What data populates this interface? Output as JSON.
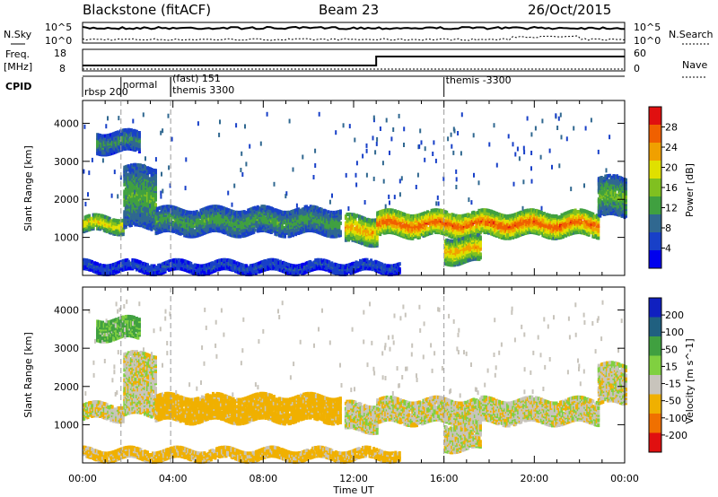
{
  "header": {
    "title": "Blackstone (fitACF)",
    "beam": "Beam 23",
    "date": "26/Oct/2015"
  },
  "noise_panel": {
    "left_label": "N.Sky",
    "right_label": "N.Search",
    "left_ticks": [
      "10^5",
      "10^0"
    ],
    "right_ticks": [
      "10^5",
      "10^0"
    ]
  },
  "freq_panel": {
    "left_label_1": "Freq.",
    "left_label_2": "[MHz]",
    "right_label": "Nave",
    "left_ticks": [
      "18",
      "8"
    ],
    "right_ticks": [
      "60",
      "0"
    ],
    "freq_step_time_hours": 13.0
  },
  "cpid_panel": {
    "label": "CPID",
    "segments": [
      {
        "start_hour": 0.0,
        "text": "rbsp 200"
      },
      {
        "start_hour": 1.7,
        "text": "normal"
      },
      {
        "start_hour": 3.9,
        "text": "(fast) 151"
      },
      {
        "start_hour": 3.9,
        "text": "themis 3300"
      },
      {
        "start_hour": 16.0,
        "text": "themis -3300"
      }
    ]
  },
  "x_axis": {
    "label": "Time UT",
    "ticks": [
      "00:00",
      "04:00",
      "08:00",
      "12:00",
      "16:00",
      "20:00",
      "00:00"
    ],
    "range_hours": [
      0,
      24
    ]
  },
  "power_panel": {
    "ylabel": "Slant Range [km]",
    "yticks": [
      "1000",
      "2000",
      "3000",
      "4000"
    ],
    "colorbar_label": "Power [dB]",
    "colorbar_ticks": [
      "28",
      "24",
      "20",
      "16",
      "12",
      "8",
      "4"
    ],
    "colors": [
      "#0000ee",
      "#1840c8",
      "#306890",
      "#40a040",
      "#80c020",
      "#e0e000",
      "#f0a000",
      "#f06000",
      "#e01010"
    ]
  },
  "velocity_panel": {
    "ylabel": "Slant Range [km]",
    "yticks": [
      "1000",
      "2000",
      "3000",
      "4000"
    ],
    "colorbar_label": "Velocity [m s^-1]",
    "colorbar_ticks": [
      "200",
      "100",
      "50",
      "15",
      "-15",
      "-50",
      "-100",
      "-200"
    ],
    "colors": [
      "#1020c0",
      "#206080",
      "#40a040",
      "#80d040",
      "#c8c4bc",
      "#f0b000",
      "#f07000",
      "#e01010"
    ]
  },
  "chart_data": {
    "type": "heatmap",
    "xlabel": "Time UT",
    "ylabel": "Slant Range [km]",
    "xlim": [
      0,
      24
    ],
    "ylim": [
      0,
      4600
    ],
    "power_scale": [
      0,
      30
    ],
    "velocity_scale": [
      -200,
      200
    ],
    "dashed_time_markers_hours": [
      1.7,
      3.9,
      16.0
    ],
    "echo_bands": [
      {
        "t0": 0.0,
        "t1": 1.8,
        "r0": 1200,
        "r1": 1600,
        "power": 20,
        "velocity": 0
      },
      {
        "t0": 1.8,
        "t1": 3.2,
        "r0": 1300,
        "r1": 2900,
        "power": 13,
        "velocity": 0
      },
      {
        "t0": 0.6,
        "t1": 2.5,
        "r0": 3300,
        "r1": 3800,
        "power": 11,
        "velocity": 40
      },
      {
        "t0": 3.2,
        "t1": 11.4,
        "r0": 1150,
        "r1": 1800,
        "power": 12,
        "velocity": -40
      },
      {
        "t0": 11.6,
        "t1": 13.0,
        "r0": 900,
        "r1": 1600,
        "power": 22,
        "velocity": 0
      },
      {
        "t0": 13.0,
        "t1": 22.8,
        "r0": 1100,
        "r1": 1700,
        "power": 26,
        "velocity": 0
      },
      {
        "t0": 16.0,
        "t1": 17.6,
        "r0": 400,
        "r1": 1050,
        "power": 22,
        "velocity": 0
      },
      {
        "t0": 22.8,
        "t1": 24.0,
        "r0": 1600,
        "r1": 2600,
        "power": 14,
        "velocity": 0
      },
      {
        "t0": 0.0,
        "t1": 14.0,
        "r0": 150,
        "r1": 420,
        "power": 6,
        "velocity": -30
      }
    ]
  }
}
